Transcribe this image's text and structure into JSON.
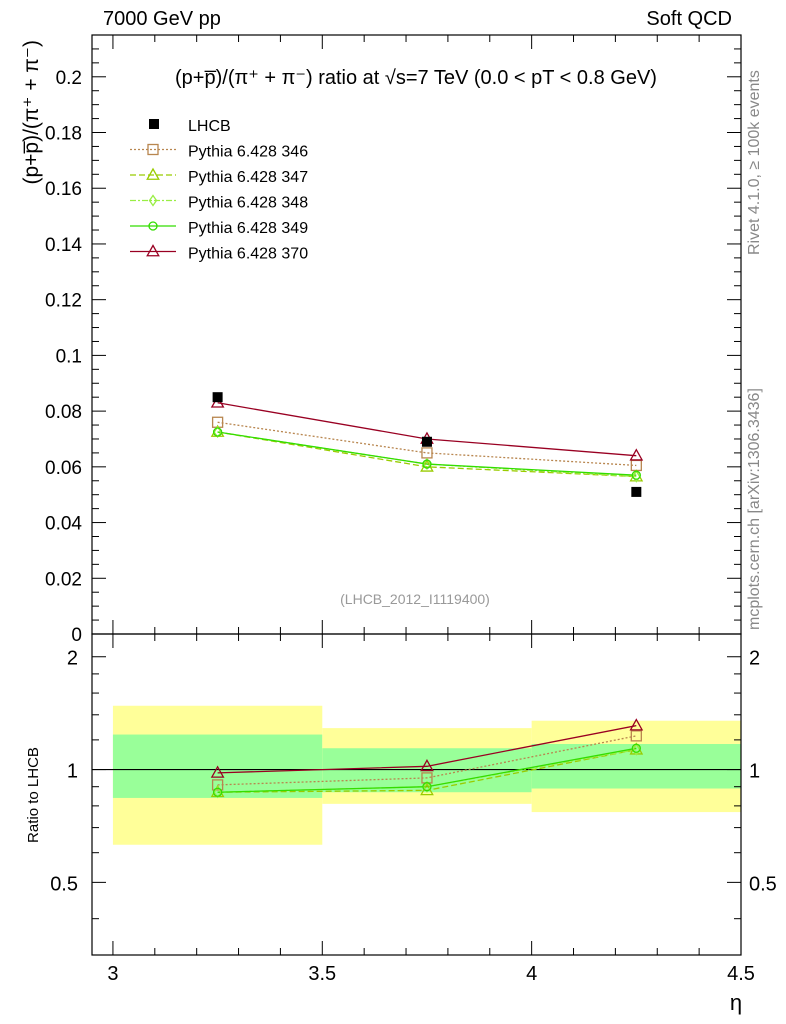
{
  "header": {
    "left": "7000 GeV pp",
    "right": "Soft QCD"
  },
  "side_labels": {
    "rivet": "Rivet 4.1.0, ≥ 100k events",
    "mcplots": "mcplots.cern.ch [arXiv:1306.3436]"
  },
  "chart_data": {
    "type": "line",
    "title": "(p+p̅)/(π⁺ + π⁻) ratio at √s=7 TeV (0.0 < pT < 0.8 GeV)",
    "analysis_id": "(LHCB_2012_I1119400)",
    "xlabel": "η",
    "ylabel": "(p+p̅)/(π⁺ + π⁻)",
    "ratio_ylabel": "Ratio to LHCB",
    "xlim": [
      2.95,
      4.5
    ],
    "ylim": [
      0,
      0.215
    ],
    "ratio_ylim": [
      0.32,
      2.3
    ],
    "x_ticks": [
      "3",
      "3.5",
      "4",
      "4.5"
    ],
    "y_ticks": [
      "0",
      "0.02",
      "0.04",
      "0.06",
      "0.08",
      "0.1",
      "0.12",
      "0.14",
      "0.16",
      "0.18",
      "0.2"
    ],
    "ratio_ticks": [
      "0.5",
      "1",
      "2"
    ],
    "bins": [
      [
        3.0,
        3.5
      ],
      [
        3.5,
        4.0
      ],
      [
        4.0,
        4.5
      ]
    ],
    "x": [
      3.25,
      3.75,
      4.25
    ],
    "data": {
      "name": "LHCB",
      "color": "#000000",
      "values": [
        0.085,
        0.069,
        0.051
      ],
      "band_green": [
        [
          0.84,
          1.24
        ],
        [
          0.87,
          1.14
        ],
        [
          0.89,
          1.17
        ]
      ],
      "band_yellow": [
        [
          0.63,
          1.48
        ],
        [
          0.81,
          1.29
        ],
        [
          0.77,
          1.35
        ]
      ]
    },
    "series": [
      {
        "name": "Pythia 6.428 346",
        "color": "#b8864f",
        "marker": "square",
        "dash": "2,2",
        "values": [
          0.076,
          0.065,
          0.0605
        ],
        "ratio": [
          0.91,
          0.95,
          1.23
        ]
      },
      {
        "name": "Pythia 6.428 347",
        "color": "#99cc00",
        "marker": "triangle",
        "dash": "6,3",
        "values": [
          0.0725,
          0.06,
          0.0565
        ],
        "ratio": [
          0.87,
          0.88,
          1.13
        ]
      },
      {
        "name": "Pythia 6.428 348",
        "color": "#99ee44",
        "marker": "diamond",
        "dash": "6,2,2,2",
        "values": [
          0.0725,
          0.061,
          0.0565
        ],
        "ratio": [
          0.87,
          0.9,
          1.13
        ]
      },
      {
        "name": "Pythia 6.428 349",
        "color": "#33dd00",
        "marker": "circle",
        "dash": "",
        "values": [
          0.0725,
          0.061,
          0.057
        ],
        "ratio": [
          0.87,
          0.9,
          1.14
        ]
      },
      {
        "name": "Pythia 6.428 370",
        "color": "#990022",
        "marker": "triangle",
        "dash": "",
        "values": [
          0.083,
          0.07,
          0.064
        ],
        "ratio": [
          0.98,
          1.02,
          1.31
        ]
      }
    ]
  }
}
